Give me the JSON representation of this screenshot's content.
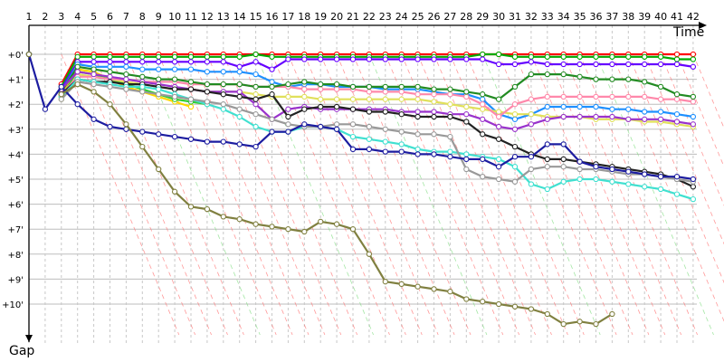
{
  "chart_data": {
    "type": "line",
    "x_title": "Time",
    "y_title": "Gap",
    "laps": [
      1,
      2,
      3,
      4,
      5,
      6,
      7,
      8,
      9,
      10,
      11,
      12,
      13,
      14,
      15,
      16,
      17,
      18,
      19,
      20,
      21,
      22,
      23,
      24,
      25,
      26,
      27,
      28,
      29,
      30,
      31,
      32,
      33,
      34,
      35,
      36,
      37,
      38,
      39,
      40,
      41,
      42
    ],
    "gap_labels": [
      "+0'",
      "+1'",
      "+2'",
      "+3'",
      "+4'",
      "+5'",
      "+6'",
      "+7'",
      "+8'",
      "+9'",
      "+10'"
    ],
    "gap_range": [
      0,
      10
    ],
    "grid": true,
    "series": [
      {
        "color": "#ff0000",
        "values": [
          0.0,
          null,
          1.2,
          0.0,
          0.0,
          0.0,
          0.0,
          0.0,
          0.0,
          0.0,
          0.0,
          0.0,
          0.0,
          0.0,
          0.0,
          0.0,
          0.0,
          0.0,
          0.0,
          0.0,
          0.0,
          0.0,
          0.0,
          0.0,
          0.0,
          0.0,
          0.0,
          0.0,
          0.0,
          0.0,
          0.0,
          0.0,
          0.0,
          0.0,
          0.0,
          0.0,
          0.0,
          0.0,
          0.0,
          0.0,
          0.0,
          0.0
        ]
      },
      {
        "color": "#00aa00",
        "values": [
          0.0,
          null,
          1.3,
          0.1,
          0.1,
          0.1,
          0.1,
          0.1,
          0.1,
          0.1,
          0.1,
          0.1,
          0.1,
          0.1,
          0.0,
          0.1,
          0.1,
          0.1,
          0.1,
          0.1,
          0.1,
          0.1,
          0.1,
          0.1,
          0.1,
          0.1,
          0.1,
          0.1,
          0.0,
          0.0,
          0.1,
          0.1,
          0.1,
          0.1,
          0.1,
          0.1,
          0.1,
          0.1,
          0.1,
          0.1,
          0.2,
          0.2
        ]
      },
      {
        "color": "#6600ff",
        "values": [
          0.0,
          null,
          1.4,
          0.3,
          0.3,
          0.3,
          0.3,
          0.3,
          0.3,
          0.3,
          0.3,
          0.3,
          0.3,
          0.5,
          0.3,
          0.6,
          0.2,
          0.2,
          0.2,
          0.2,
          0.2,
          0.2,
          0.2,
          0.2,
          0.2,
          0.2,
          0.2,
          0.2,
          0.2,
          0.4,
          0.4,
          0.3,
          0.4,
          0.4,
          0.4,
          0.4,
          0.4,
          0.4,
          0.4,
          0.4,
          0.4,
          0.5
        ]
      },
      {
        "color": "#1e90ff",
        "values": [
          0.0,
          null,
          1.5,
          0.4,
          0.5,
          0.5,
          0.5,
          0.6,
          0.6,
          0.6,
          0.6,
          0.7,
          0.7,
          0.7,
          0.8,
          1.1,
          1.3,
          1.2,
          1.2,
          1.3,
          1.3,
          1.3,
          1.4,
          1.4,
          1.4,
          1.5,
          1.6,
          1.6,
          1.8,
          2.4,
          2.6,
          2.4,
          2.1,
          2.1,
          2.1,
          2.1,
          2.2,
          2.2,
          2.3,
          2.3,
          2.4,
          2.5
        ]
      },
      {
        "color": "#ffd700",
        "values": [
          0.0,
          null,
          1.6,
          0.6,
          0.7,
          1.0,
          1.3,
          1.5,
          1.7,
          1.9,
          2.1,
          null,
          null,
          null,
          null,
          null,
          null,
          null,
          null,
          null,
          null,
          null,
          null,
          null,
          null,
          null,
          null,
          null,
          null,
          null,
          null,
          null,
          null,
          null,
          null,
          null,
          null,
          null,
          null,
          null,
          null,
          null
        ]
      },
      {
        "color": "#32cd32",
        "values": [
          0.0,
          null,
          1.7,
          0.7,
          0.8,
          1.0,
          1.2,
          1.4,
          1.6,
          1.8,
          1.9,
          2.0,
          null,
          null,
          null,
          null,
          null,
          null,
          null,
          null,
          null,
          null,
          null,
          null,
          null,
          null,
          null,
          null,
          null,
          null,
          null,
          null,
          null,
          null,
          null,
          null,
          null,
          null,
          null,
          null,
          null,
          null
        ]
      },
      {
        "color": "#e0e05a",
        "values": [
          0.0,
          null,
          1.8,
          0.8,
          0.9,
          1.0,
          1.1,
          1.2,
          1.3,
          1.4,
          1.4,
          1.5,
          1.5,
          1.5,
          1.6,
          1.7,
          1.7,
          1.7,
          1.8,
          1.8,
          1.8,
          1.8,
          1.8,
          1.8,
          1.8,
          1.9,
          2.0,
          2.1,
          2.2,
          2.3,
          2.4,
          2.4,
          2.5,
          2.5,
          2.5,
          2.6,
          2.6,
          2.6,
          2.7,
          2.7,
          2.8,
          2.9
        ]
      },
      {
        "color": "#ff88aa",
        "values": [
          0.0,
          null,
          1.6,
          0.9,
          0.9,
          1.0,
          1.0,
          1.1,
          1.1,
          1.1,
          1.2,
          1.2,
          1.2,
          1.2,
          1.3,
          1.3,
          1.3,
          1.4,
          1.4,
          1.4,
          1.4,
          1.5,
          1.5,
          1.5,
          1.6,
          1.6,
          1.6,
          1.7,
          2.0,
          2.5,
          2.0,
          1.8,
          1.7,
          1.7,
          1.7,
          1.7,
          1.7,
          1.7,
          1.7,
          1.8,
          1.8,
          1.9
        ]
      },
      {
        "color": "#228b22",
        "values": [
          0.0,
          null,
          1.5,
          0.5,
          0.6,
          0.7,
          0.8,
          0.9,
          1.0,
          1.0,
          1.1,
          1.2,
          1.2,
          1.2,
          1.3,
          1.3,
          1.2,
          1.1,
          1.2,
          1.2,
          1.3,
          1.3,
          1.3,
          1.3,
          1.3,
          1.4,
          1.4,
          1.5,
          1.6,
          1.8,
          1.3,
          0.8,
          0.8,
          0.8,
          0.9,
          1.0,
          1.0,
          1.0,
          1.1,
          1.3,
          1.6,
          1.7
        ]
      },
      {
        "color": "#9932cc",
        "values": [
          0.0,
          null,
          1.4,
          0.7,
          0.8,
          0.9,
          1.0,
          1.1,
          1.2,
          1.3,
          1.4,
          1.5,
          1.5,
          1.5,
          2.0,
          2.6,
          2.2,
          2.1,
          2.2,
          2.2,
          2.2,
          2.2,
          2.2,
          2.3,
          2.3,
          2.3,
          2.4,
          2.4,
          2.6,
          2.9,
          3.0,
          2.8,
          2.6,
          2.5,
          2.5,
          2.5,
          2.5,
          2.6,
          2.6,
          2.6,
          2.7,
          2.8
        ]
      },
      {
        "color": "#222222",
        "values": [
          0.0,
          null,
          1.6,
          1.0,
          1.1,
          1.1,
          1.2,
          1.2,
          1.3,
          1.4,
          1.4,
          1.5,
          1.6,
          1.7,
          1.8,
          1.6,
          2.5,
          2.2,
          2.1,
          2.1,
          2.2,
          2.3,
          2.3,
          2.4,
          2.5,
          2.5,
          2.5,
          2.7,
          3.2,
          3.4,
          3.7,
          4.0,
          4.2,
          4.2,
          4.3,
          4.4,
          4.5,
          4.6,
          4.7,
          4.8,
          5.0,
          5.3
        ]
      },
      {
        "color": "#40e0d0",
        "values": [
          0.0,
          null,
          1.7,
          1.0,
          1.1,
          1.2,
          1.3,
          1.3,
          1.4,
          1.6,
          1.8,
          2.0,
          2.2,
          2.5,
          2.9,
          3.1,
          3.1,
          2.9,
          2.9,
          3.0,
          3.3,
          3.4,
          3.5,
          3.6,
          3.8,
          3.9,
          3.9,
          4.0,
          4.1,
          4.2,
          4.5,
          5.2,
          5.4,
          5.1,
          5.0,
          5.0,
          5.1,
          5.2,
          5.3,
          5.4,
          5.6,
          5.8
        ]
      },
      {
        "color": "#999999",
        "values": [
          0.0,
          null,
          1.8,
          1.1,
          1.2,
          1.3,
          1.4,
          1.5,
          1.6,
          1.7,
          1.8,
          1.9,
          2.0,
          2.2,
          2.4,
          2.6,
          2.8,
          2.9,
          2.9,
          2.8,
          2.8,
          2.9,
          3.0,
          3.1,
          3.2,
          3.2,
          3.3,
          4.6,
          4.9,
          5.0,
          5.1,
          4.6,
          4.5,
          4.5,
          4.6,
          4.6,
          4.7,
          4.8,
          4.8,
          4.9,
          5.0,
          5.1
        ]
      },
      {
        "color": "#1c1ca0",
        "values": [
          0.0,
          2.2,
          1.3,
          2.0,
          2.6,
          2.9,
          3.0,
          3.1,
          3.2,
          3.3,
          3.4,
          3.5,
          3.5,
          3.6,
          3.7,
          3.1,
          3.1,
          2.8,
          2.9,
          3.0,
          3.8,
          3.8,
          3.9,
          3.9,
          4.0,
          4.0,
          4.1,
          4.2,
          4.2,
          4.5,
          4.1,
          4.1,
          3.6,
          3.6,
          4.3,
          4.5,
          4.6,
          4.7,
          4.8,
          4.9,
          4.9,
          5.0
        ]
      },
      {
        "color": "#808040",
        "values": [
          0.0,
          null,
          1.6,
          1.2,
          1.5,
          2.0,
          2.8,
          3.7,
          4.6,
          5.5,
          6.1,
          6.2,
          6.5,
          6.6,
          6.8,
          6.9,
          7.0,
          7.1,
          6.7,
          6.8,
          7.0,
          8.0,
          9.1,
          9.2,
          9.3,
          9.4,
          9.5,
          9.8,
          9.9,
          10.0,
          10.1,
          10.2,
          10.4,
          10.8,
          10.7,
          10.8,
          10.4,
          null,
          null,
          null,
          null,
          null
        ]
      }
    ]
  }
}
